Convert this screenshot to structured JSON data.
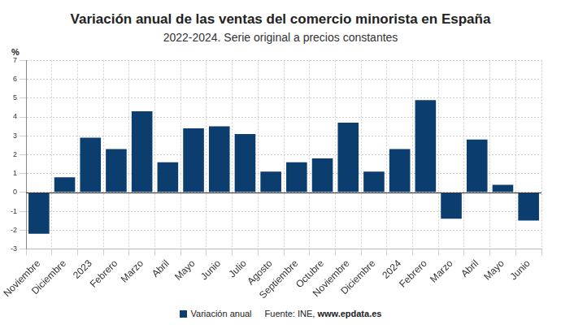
{
  "chart_data": {
    "type": "bar",
    "title": "Variación anual de las ventas del comercio minorista en España",
    "subtitle": "2022-2024. Serie original a precios constantes",
    "ylabel": "%",
    "source": "Fuente: INE, www.epdata.es",
    "categories": [
      "Noviembre",
      "Diciembre",
      "2023",
      "Febrero",
      "Marzo",
      "Abril",
      "Mayo",
      "Junio",
      "Julio",
      "Agosto",
      "Septiembre",
      "Octubre",
      "Noviembre",
      "Diciembre",
      "2024",
      "Febrero",
      "Marzo",
      "Abril",
      "Mayo",
      "Junio"
    ],
    "series": [
      {
        "name": "Variación anual",
        "color": "#0c3d6f",
        "values": [
          -2.2,
          0.8,
          2.9,
          2.3,
          4.3,
          1.6,
          3.4,
          3.5,
          3.1,
          1.1,
          1.6,
          1.8,
          3.7,
          1.1,
          2.3,
          4.9,
          -1.4,
          2.8,
          0.4,
          -1.5
        ]
      }
    ],
    "ylim": [
      -3,
      7
    ],
    "yticks": [
      -3,
      -2,
      -1,
      0,
      1,
      2,
      3,
      4,
      5,
      6,
      7
    ],
    "grid": true,
    "legend": "bottom"
  }
}
